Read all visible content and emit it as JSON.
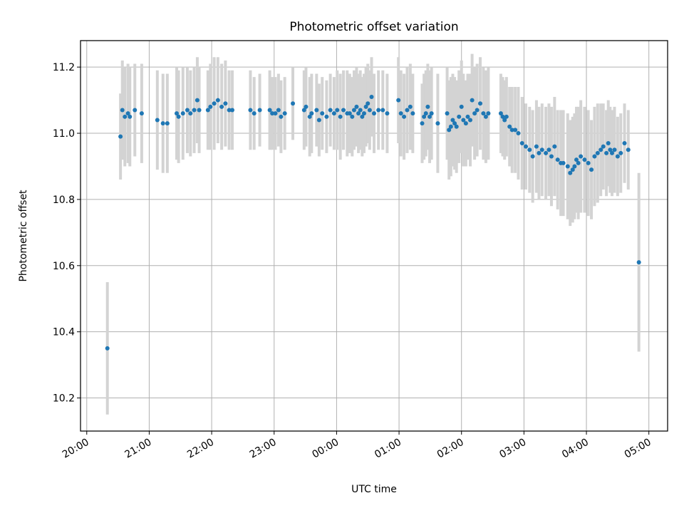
{
  "chart_data": {
    "type": "scatter",
    "title": "Photometric offset variation",
    "xlabel": "UTC time",
    "ylabel": "Photometric offset",
    "x_unit": "UTC hours (values beyond 24 are after midnight)",
    "xlim": [
      19.9,
      29.3
    ],
    "ylim": [
      10.1,
      11.28
    ],
    "x_tick_values": [
      20,
      21,
      22,
      23,
      24,
      25,
      26,
      27,
      28,
      29
    ],
    "x_tick_labels": [
      "20:00",
      "21:00",
      "22:00",
      "23:00",
      "00:00",
      "01:00",
      "02:00",
      "03:00",
      "04:00",
      "05:00"
    ],
    "y_ticks": [
      "10.2",
      "10.4",
      "10.6",
      "10.8",
      "11.0",
      "11.2"
    ],
    "grid": true,
    "legend": "none",
    "colors": {
      "points": "#1f77b4",
      "error_bars": "#d3d3d3",
      "grid": "#b0b0b0"
    },
    "series": [
      {
        "x": [
          20.33,
          20.54,
          20.57,
          20.61,
          20.66,
          20.69,
          20.77,
          20.88,
          21.13,
          21.22,
          21.29,
          21.44,
          21.47,
          21.54,
          21.61,
          21.66,
          21.72,
          21.77,
          21.8,
          21.94,
          21.98,
          22.04,
          22.1,
          22.16,
          22.22,
          22.28,
          22.33,
          22.62,
          22.68,
          22.77,
          22.93,
          22.97,
          23.02,
          23.07,
          23.11,
          23.17,
          23.3,
          23.48,
          23.51,
          23.57,
          23.6,
          23.68,
          23.72,
          23.77,
          23.84,
          23.9,
          23.96,
          24.01,
          24.06,
          24.11,
          24.17,
          24.21,
          24.25,
          24.28,
          24.32,
          24.35,
          24.38,
          24.41,
          24.44,
          24.47,
          24.5,
          24.53,
          24.56,
          24.6,
          24.67,
          24.74,
          24.81,
          24.99,
          25.03,
          25.08,
          25.13,
          25.18,
          25.22,
          25.37,
          25.4,
          25.43,
          25.46,
          25.49,
          25.52,
          25.62,
          25.77,
          25.8,
          25.83,
          25.86,
          25.89,
          25.92,
          25.96,
          26.0,
          26.03,
          26.07,
          26.1,
          26.14,
          26.17,
          26.21,
          26.25,
          26.3,
          26.35,
          26.39,
          26.43,
          26.63,
          26.66,
          26.69,
          26.72,
          26.77,
          26.81,
          26.86,
          26.91,
          26.97,
          27.03,
          27.09,
          27.14,
          27.2,
          27.24,
          27.29,
          27.35,
          27.4,
          27.44,
          27.49,
          27.54,
          27.59,
          27.63,
          27.7,
          27.74,
          27.78,
          27.81,
          27.84,
          27.87,
          27.91,
          27.97,
          28.03,
          28.08,
          28.13,
          28.18,
          28.23,
          28.27,
          28.32,
          28.35,
          28.38,
          28.41,
          28.45,
          28.5,
          28.55,
          28.61,
          28.67,
          28.84
        ],
        "y": [
          10.35,
          10.99,
          11.07,
          11.05,
          11.06,
          11.05,
          11.07,
          11.06,
          11.04,
          11.03,
          11.03,
          11.06,
          11.05,
          11.06,
          11.07,
          11.06,
          11.07,
          11.1,
          11.07,
          11.07,
          11.08,
          11.09,
          11.1,
          11.08,
          11.09,
          11.07,
          11.07,
          11.07,
          11.06,
          11.07,
          11.07,
          11.06,
          11.06,
          11.07,
          11.05,
          11.06,
          11.09,
          11.07,
          11.08,
          11.05,
          11.06,
          11.07,
          11.04,
          11.06,
          11.05,
          11.07,
          11.06,
          11.07,
          11.05,
          11.07,
          11.06,
          11.06,
          11.05,
          11.07,
          11.08,
          11.06,
          11.07,
          11.05,
          11.06,
          11.08,
          11.09,
          11.07,
          11.11,
          11.06,
          11.07,
          11.07,
          11.06,
          11.1,
          11.06,
          11.05,
          11.07,
          11.08,
          11.06,
          11.03,
          11.05,
          11.06,
          11.08,
          11.05,
          11.06,
          11.03,
          11.06,
          11.01,
          11.02,
          11.04,
          11.03,
          11.02,
          11.05,
          11.08,
          11.04,
          11.03,
          11.05,
          11.04,
          11.1,
          11.06,
          11.07,
          11.09,
          11.06,
          11.05,
          11.06,
          11.06,
          11.05,
          11.04,
          11.05,
          11.02,
          11.01,
          11.01,
          11.0,
          10.97,
          10.96,
          10.95,
          10.93,
          10.96,
          10.94,
          10.95,
          10.94,
          10.95,
          10.93,
          10.96,
          10.92,
          10.91,
          10.91,
          10.9,
          10.88,
          10.89,
          10.9,
          10.92,
          10.91,
          10.93,
          10.92,
          10.91,
          10.89,
          10.93,
          10.94,
          10.95,
          10.96,
          10.94,
          10.97,
          10.95,
          10.94,
          10.95,
          10.93,
          10.94,
          10.97,
          10.95,
          10.61
        ],
        "err": [
          0.2,
          0.13,
          0.15,
          0.15,
          0.15,
          0.15,
          0.14,
          0.15,
          0.15,
          0.15,
          0.15,
          0.14,
          0.14,
          0.14,
          0.13,
          0.13,
          0.13,
          0.13,
          0.13,
          0.12,
          0.13,
          0.14,
          0.13,
          0.13,
          0.13,
          0.12,
          0.12,
          0.12,
          0.11,
          0.11,
          0.12,
          0.11,
          0.11,
          0.11,
          0.11,
          0.11,
          0.11,
          0.12,
          0.12,
          0.12,
          0.12,
          0.11,
          0.11,
          0.11,
          0.11,
          0.11,
          0.11,
          0.12,
          0.13,
          0.12,
          0.13,
          0.12,
          0.12,
          0.12,
          0.12,
          0.12,
          0.12,
          0.12,
          0.12,
          0.12,
          0.12,
          0.12,
          0.12,
          0.12,
          0.12,
          0.12,
          0.12,
          0.13,
          0.13,
          0.13,
          0.13,
          0.13,
          0.12,
          0.12,
          0.13,
          0.13,
          0.13,
          0.14,
          0.14,
          0.15,
          0.14,
          0.15,
          0.15,
          0.14,
          0.14,
          0.14,
          0.14,
          0.14,
          0.14,
          0.13,
          0.13,
          0.14,
          0.14,
          0.14,
          0.14,
          0.14,
          0.14,
          0.14,
          0.14,
          0.12,
          0.12,
          0.12,
          0.12,
          0.12,
          0.13,
          0.13,
          0.14,
          0.14,
          0.13,
          0.13,
          0.14,
          0.14,
          0.14,
          0.14,
          0.14,
          0.14,
          0.15,
          0.15,
          0.15,
          0.16,
          0.16,
          0.16,
          0.16,
          0.16,
          0.16,
          0.16,
          0.17,
          0.17,
          0.16,
          0.16,
          0.15,
          0.15,
          0.15,
          0.14,
          0.13,
          0.13,
          0.13,
          0.13,
          0.13,
          0.13,
          0.12,
          0.12,
          0.12,
          0.12,
          0.27
        ]
      }
    ]
  }
}
